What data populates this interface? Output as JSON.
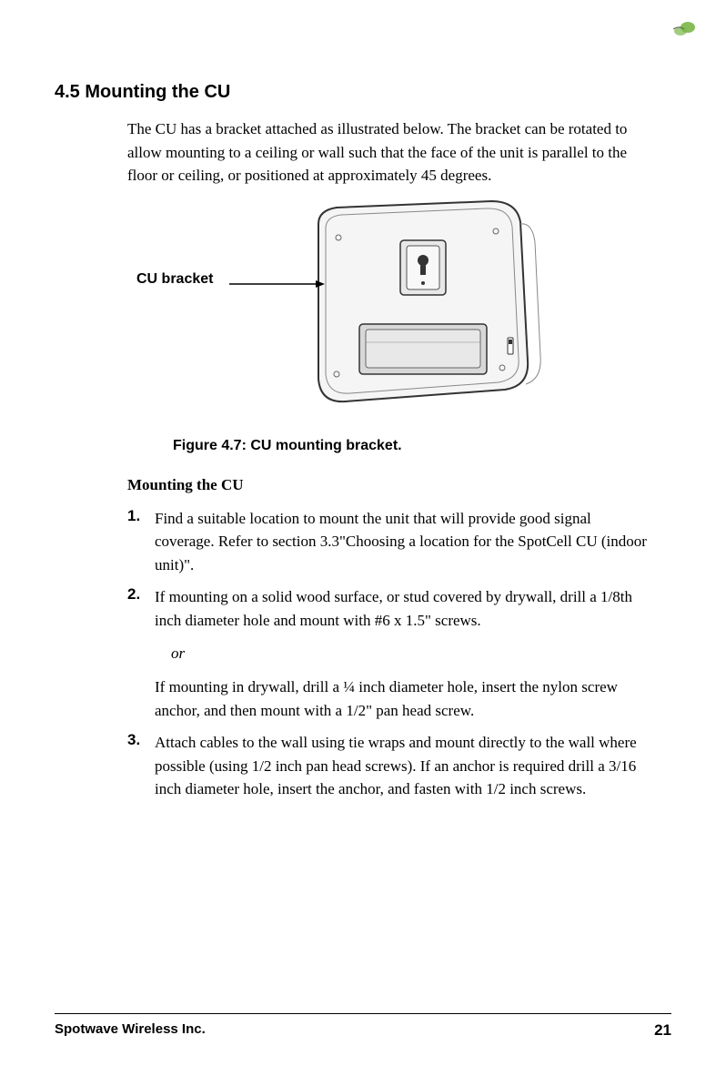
{
  "section": {
    "number": "4.5",
    "title": "Mounting the CU"
  },
  "intro_text": "The CU has a bracket attached as illustrated below. The bracket can be rotated to allow mounting to a ceiling or wall such that the face of the unit is parallel to the floor or ceiling, or positioned at approximately 45 degrees.",
  "figure": {
    "label": "CU bracket",
    "caption": "Figure 4.7: CU mounting bracket."
  },
  "subheading": "Mounting the CU",
  "steps": [
    {
      "number": "1.",
      "text": "Find a suitable location to mount the unit that will provide good signal coverage. Refer to section 3.3\"Choosing a location for the SpotCell CU (indoor unit)\"."
    },
    {
      "number": "2.",
      "text": "If mounting on a solid wood surface, or stud covered by drywall, drill a 1/8th inch diameter hole and mount with #6 x 1.5\" screws."
    },
    {
      "number": "3.",
      "text": "Attach cables to the wall using tie wraps and mount directly to the wall where possible (using 1/2 inch pan head screws). If an anchor is required drill a 3/16 inch diameter hole, insert the anchor, and fasten with 1/2 inch screws."
    }
  ],
  "or_text": "or",
  "continuation_text": "If mounting in drywall, drill a ¼ inch diameter hole, insert the nylon screw anchor, and then mount with a 1/2\" pan head screw.",
  "footer": {
    "company": "Spotwave Wireless Inc.",
    "page": "21"
  },
  "colors": {
    "logo_green": "#7ab648",
    "text": "#000000",
    "device_fill": "#f0f0f0",
    "device_stroke": "#333333"
  }
}
